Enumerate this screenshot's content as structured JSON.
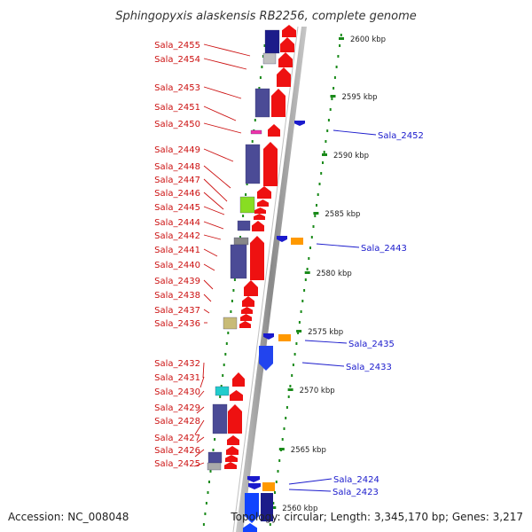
{
  "title": "Sphingopyxis alaskensis RB2256, complete genome",
  "footer": {
    "accession": "Accession: NC_008048",
    "topology": "Topology: circular; Length: 3,345,170 bp; Genes: 3,217"
  },
  "colors": {
    "forward": "#ee1111",
    "reverse": "#1a1acc",
    "backbone": "#9a9a9a",
    "ticks": "#1a8a1a",
    "cds_block": "#4b4b96",
    "rna_orange": "#ff9900"
  },
  "scale_ticks": [
    {
      "label": "2600 kbp"
    },
    {
      "label": "2595 kbp"
    },
    {
      "label": "2590 kbp"
    },
    {
      "label": "2585 kbp"
    },
    {
      "label": "2580 kbp"
    },
    {
      "label": "2575 kbp"
    },
    {
      "label": "2570 kbp"
    },
    {
      "label": "2565 kbp"
    },
    {
      "label": "2560 kbp"
    }
  ],
  "left_labels": [
    "Sala_2455",
    "Sala_2454",
    "Sala_2453",
    "Sala_2451",
    "Sala_2450",
    "Sala_2449",
    "Sala_2448",
    "Sala_2447",
    "Sala_2446",
    "Sala_2445",
    "Sala_2444",
    "Sala_2442",
    "Sala_2441",
    "Sala_2440",
    "Sala_2439",
    "Sala_2438",
    "Sala_2437",
    "Sala_2436",
    "Sala_2432",
    "Sala_2431",
    "Sala_2430",
    "Sala_2429",
    "Sala_2428",
    "Sala_2427",
    "Sala_2426",
    "Sala_2425"
  ],
  "right_labels": [
    "Sala_2452",
    "Sala_2443",
    "Sala_2435",
    "Sala_2433",
    "Sala_2424",
    "Sala_2423"
  ]
}
